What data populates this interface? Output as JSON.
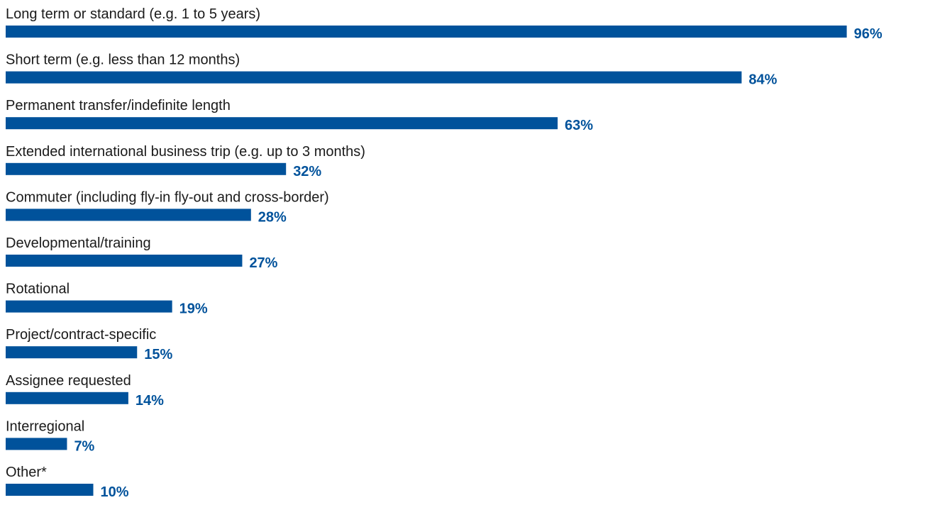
{
  "chart_data": {
    "type": "bar",
    "orientation": "horizontal",
    "categories": [
      "Long term or standard (e.g. 1 to 5 years)",
      "Short term (e.g. less than 12 months)",
      "Permanent transfer/indefinite length",
      "Extended international business trip (e.g. up to 3 months)",
      "Commuter (including fly-in fly-out and cross-border)",
      "Developmental/training",
      "Rotational",
      "Project/contract-specific",
      "Assignee requested",
      "Interregional",
      "Other*"
    ],
    "values": [
      96,
      84,
      63,
      32,
      28,
      27,
      19,
      15,
      14,
      7,
      10
    ],
    "value_labels": [
      "96%",
      "84%",
      "63%",
      "32%",
      "28%",
      "27%",
      "19%",
      "15%",
      "14%",
      "7%",
      "10%"
    ],
    "unit": "%",
    "xlim": [
      0,
      100
    ],
    "grid": false,
    "legend": "none",
    "colors": {
      "bar": "#00529b",
      "value_label": "#00529b",
      "category_label": "#1a1a1a"
    }
  }
}
